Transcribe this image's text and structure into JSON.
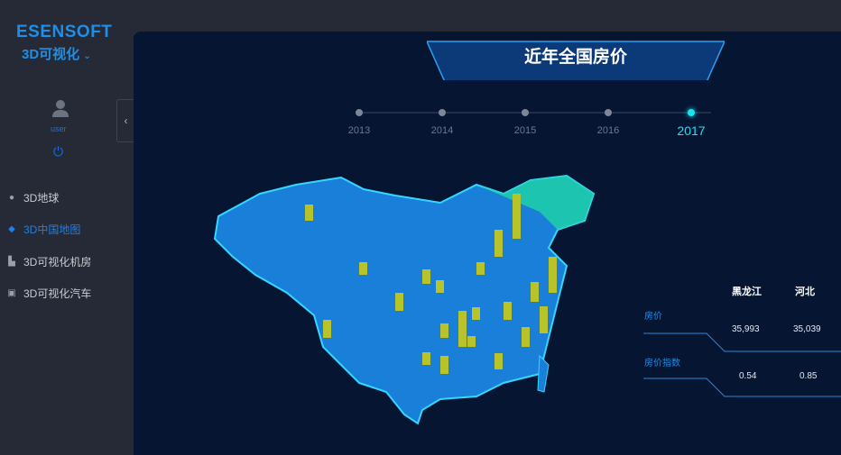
{
  "brand": {
    "name": "ESENSOFT",
    "product": "3D可视化"
  },
  "user": {
    "name": "user"
  },
  "nav": [
    {
      "label": "3D地球",
      "icon": "globe-icon",
      "active": false
    },
    {
      "label": "3D中国地图",
      "icon": "china-map-icon",
      "active": true
    },
    {
      "label": "3D可视化机房",
      "icon": "building-icon",
      "active": false
    },
    {
      "label": "3D可视化汽车",
      "icon": "car-icon",
      "active": false
    }
  ],
  "main": {
    "title": "近年全国房价"
  },
  "timeline": {
    "years": [
      "2013",
      "2014",
      "2015",
      "2016",
      "2017"
    ],
    "selected": "2017"
  },
  "table": {
    "columns": [
      "黑龙江",
      "河北"
    ],
    "rows": [
      {
        "label": "房价",
        "values": [
          "35,993",
          "35,039"
        ]
      },
      {
        "label": "房价指数",
        "values": [
          "0.54",
          "0.85"
        ]
      }
    ]
  },
  "colors": {
    "accent": "#1d8fe8",
    "map": "#1a7fd8",
    "bar": "#b8c22a",
    "highlight": "#19e3f0"
  }
}
